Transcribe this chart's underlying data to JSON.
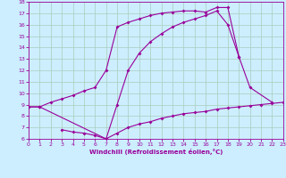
{
  "xlabel": "Windchill (Refroidissement éolien,°C)",
  "bg_color": "#cceeff",
  "line_color": "#990099",
  "grid_color": "#aaccbb",
  "xlim": [
    0,
    23
  ],
  "ylim": [
    6,
    18
  ],
  "xticks": [
    0,
    1,
    2,
    3,
    4,
    5,
    6,
    7,
    8,
    9,
    10,
    11,
    12,
    13,
    14,
    15,
    16,
    17,
    18,
    19,
    20,
    21,
    22,
    23
  ],
  "yticks": [
    6,
    7,
    8,
    9,
    10,
    11,
    12,
    13,
    14,
    15,
    16,
    17,
    18
  ],
  "line1_x": [
    0,
    1,
    2,
    3,
    4,
    5,
    6,
    7,
    8,
    9,
    10,
    11,
    12,
    13,
    14,
    15,
    16,
    17,
    18,
    19
  ],
  "line1_y": [
    8.8,
    8.8,
    9.2,
    9.5,
    9.8,
    10.2,
    10.5,
    12.0,
    15.8,
    16.2,
    16.5,
    16.8,
    17.0,
    17.1,
    17.2,
    17.2,
    17.1,
    17.5,
    17.5,
    13.2
  ],
  "line2_x": [
    0,
    1,
    7,
    8,
    9,
    10,
    11,
    12,
    13,
    14,
    15,
    16,
    17,
    18,
    19,
    20,
    22
  ],
  "line2_y": [
    8.8,
    8.8,
    6.0,
    9.0,
    12.0,
    13.5,
    14.5,
    15.2,
    15.8,
    16.2,
    16.5,
    16.8,
    17.2,
    16.0,
    13.2,
    10.5,
    9.2
  ],
  "line3_x": [
    3,
    4,
    5,
    6,
    7,
    8,
    9,
    10,
    11,
    12,
    13,
    14,
    15,
    16,
    17,
    18,
    19,
    20,
    21,
    22,
    23
  ],
  "line3_y": [
    6.8,
    6.6,
    6.5,
    6.3,
    6.0,
    6.5,
    7.0,
    7.3,
    7.5,
    7.8,
    8.0,
    8.2,
    8.3,
    8.4,
    8.6,
    8.7,
    8.8,
    8.9,
    9.0,
    9.1,
    9.2
  ]
}
